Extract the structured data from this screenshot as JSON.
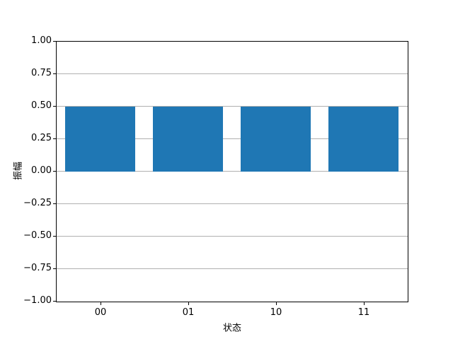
{
  "chart_data": {
    "type": "bar",
    "title": "",
    "xlabel": "状态",
    "ylabel": "振幅",
    "categories": [
      "00",
      "01",
      "10",
      "11"
    ],
    "values": [
      0.5,
      0.5,
      0.5,
      0.5
    ],
    "ylim": [
      -1.0,
      1.0
    ],
    "yticks": [
      1.0,
      0.75,
      0.5,
      0.25,
      0.0,
      -0.25,
      -0.5,
      -0.75,
      -1.0
    ],
    "ytick_labels": [
      "1.00",
      "0.75",
      "0.50",
      "0.25",
      "0.00",
      "−0.25",
      "−0.50",
      "−0.75",
      "−1.00"
    ],
    "grid": true,
    "grid_axis": "y",
    "legend": false,
    "bar_color": "#1f77b4",
    "grid_color": "#b0b0b0",
    "spine_color": "#000000",
    "background_color": "#ffffff",
    "bar_width_fraction": 0.8
  }
}
